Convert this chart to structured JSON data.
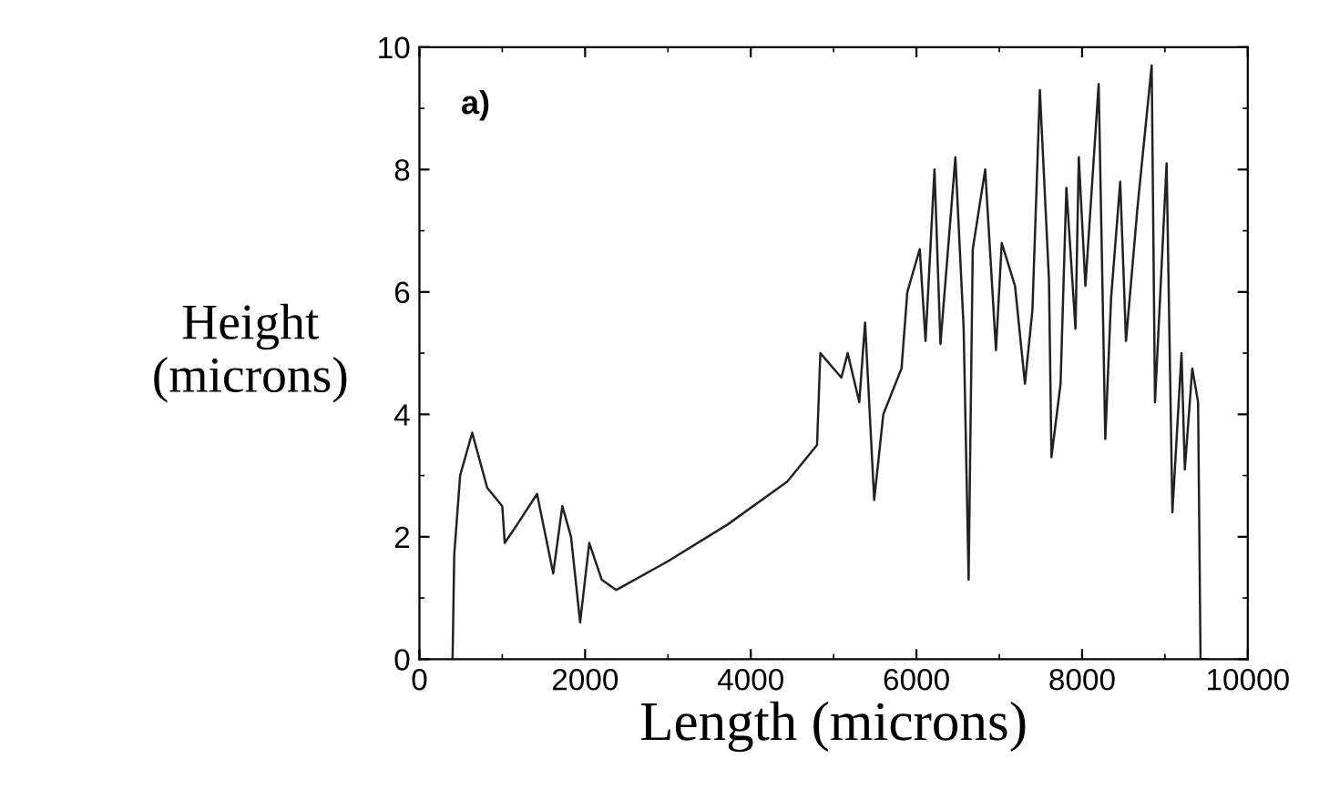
{
  "chart_data": {
    "type": "line",
    "xlabel": "Length (microns)",
    "ylabel": "Height\n(microns)",
    "annotations": [
      "a)"
    ],
    "xlim": [
      0,
      10000
    ],
    "xticks": [
      0,
      2000,
      4000,
      6000,
      8000,
      10000
    ],
    "ylim": [
      0,
      10
    ],
    "yticks": [
      0,
      2,
      4,
      6,
      8,
      10
    ],
    "grid": false,
    "marker": "none",
    "line_style": "solid",
    "series": [
      {
        "color": "#222222",
        "x": [
          400,
          420,
          491,
          637,
          818,
          1000,
          1030,
          1180,
          1420,
          1615,
          1725,
          1830,
          1940,
          2050,
          2200,
          2375,
          3000,
          3720,
          4440,
          4800,
          4840,
          5094,
          5170,
          5310,
          5380,
          5490,
          5600,
          5820,
          5890,
          6040,
          6110,
          6218,
          6290,
          6470,
          6570,
          6630,
          6680,
          6830,
          6960,
          7030,
          7190,
          7310,
          7400,
          7490,
          7600,
          7630,
          7740,
          7810,
          7920,
          7960,
          8040,
          8200,
          8280,
          8350,
          8460,
          8530,
          8670,
          8840,
          8880,
          9020,
          9090,
          9200,
          9240,
          9330,
          9400,
          9430,
          9500
        ],
        "values": [
          0,
          1.7,
          3.0,
          3.7,
          2.8,
          2.5,
          1.9,
          2.2,
          2.7,
          1.4,
          2.5,
          2.0,
          0.6,
          1.9,
          1.3,
          1.13,
          1.6,
          2.2,
          2.9,
          3.5,
          5.0,
          4.6,
          5.0,
          4.2,
          5.5,
          2.6,
          4.0,
          4.75,
          6.0,
          6.7,
          5.2,
          8.0,
          5.15,
          8.2,
          5.4,
          1.3,
          6.7,
          8.0,
          5.05,
          6.8,
          6.1,
          4.5,
          5.7,
          9.3,
          6.2,
          3.3,
          4.5,
          7.7,
          5.4,
          8.2,
          6.1,
          9.4,
          3.6,
          5.9,
          7.8,
          5.2,
          7.4,
          9.7,
          4.2,
          8.1,
          2.4,
          5.0,
          3.1,
          4.75,
          4.2,
          0,
          0
        ]
      }
    ]
  }
}
